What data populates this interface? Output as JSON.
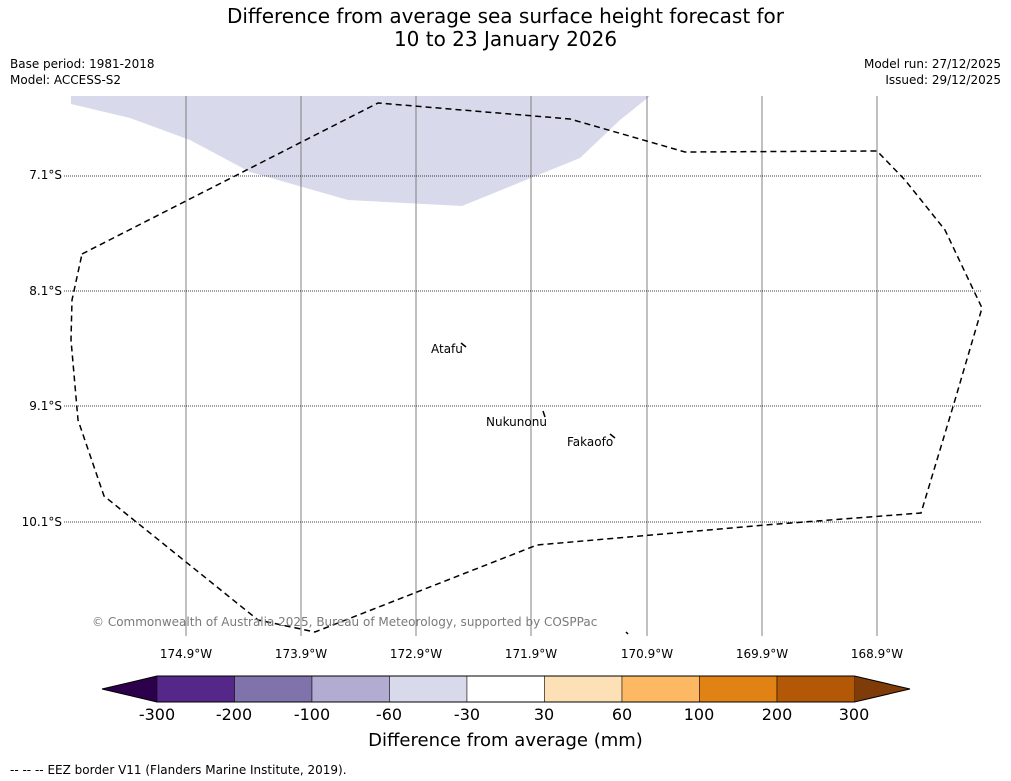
{
  "title": {
    "line1": "Difference from average sea surface height forecast for",
    "line2": "10 to 23 January 2026"
  },
  "meta": {
    "base_period": "Base period: 1981-2018",
    "model": "Model: ACCESS-S2",
    "model_run": "Model run: 27/12/2025",
    "issued": "Issued: 29/12/2025"
  },
  "map": {
    "lat_labels": [
      "7.1°S",
      "8.1°S",
      "9.1°S",
      "10.1°S"
    ],
    "lon_labels": [
      "174.9°W",
      "173.9°W",
      "172.9°W",
      "171.9°W",
      "170.9°W",
      "169.9°W",
      "168.9°W"
    ],
    "places": [
      "Atafu",
      "Nukunonu",
      "Fakaofo"
    ],
    "copyright": "© Commonwealth of Australia 2025, Bureau of Meteorology, supported by COSPPac",
    "anomaly_color": "#d8d9ea"
  },
  "colorbar": {
    "ticks": [
      "-300",
      "-200",
      "-100",
      "-60",
      "-30",
      "30",
      "60",
      "100",
      "200",
      "300"
    ],
    "colors": [
      "#2d004b",
      "#542788",
      "#8073ac",
      "#b2abd2",
      "#d8daeb",
      "#ffffff",
      "#fee0b6",
      "#fdb863",
      "#e08214",
      "#b35806",
      "#7f3b08"
    ],
    "label": "Difference from average (mm)"
  },
  "footer": {
    "legend_symbol": "--  --  --",
    "text": "EEZ border V11 (Flanders Marine Institute, 2019)."
  }
}
